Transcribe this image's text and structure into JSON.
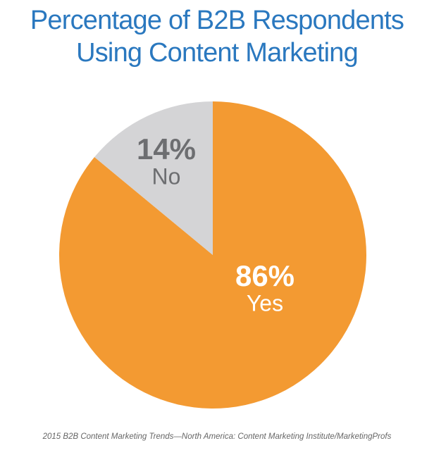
{
  "chart_data": {
    "type": "pie",
    "title": "Percentage of B2B Respondents Using Content Marketing",
    "categories": [
      "Yes",
      "No"
    ],
    "values": [
      86,
      14
    ],
    "value_labels": [
      "86%",
      "14%"
    ],
    "colors": [
      "#f39a32",
      "#d4d4d6"
    ],
    "source": "2015 B2B Content Marketing Trends—North America: Content Marketing Institute/MarketingProfs"
  }
}
